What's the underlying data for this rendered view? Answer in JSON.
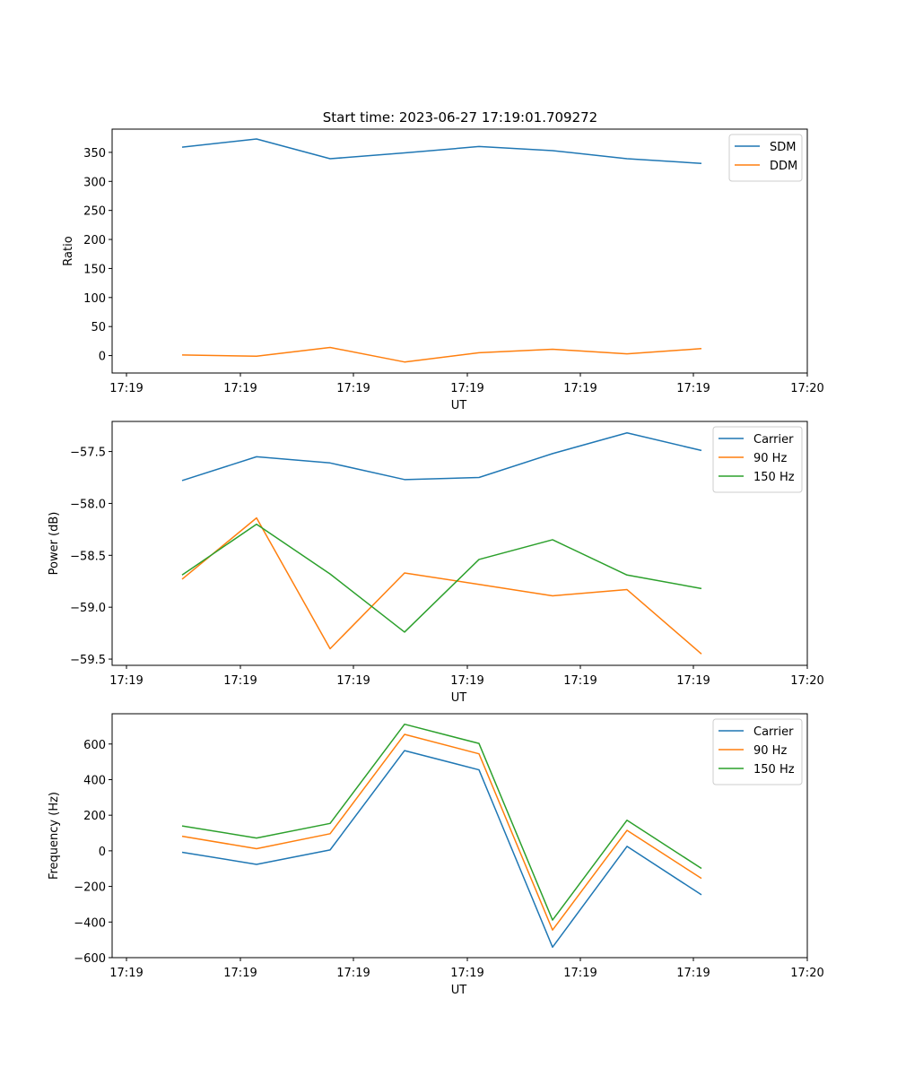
{
  "figure_title": "Start time: 2023-06-27 17:19:01.709272",
  "chart_data": [
    {
      "type": "line",
      "title": "Start time: 2023-06-27 17:19:01.709272",
      "xlabel": "UT",
      "ylabel": "Ratio",
      "x_tick_labels": [
        "17:19",
        "17:19",
        "17:19",
        "17:19",
        "17:19",
        "17:19",
        "17:20"
      ],
      "y_ticks": [
        0,
        50,
        100,
        150,
        200,
        250,
        300,
        350
      ],
      "ylim": [
        -30,
        390
      ],
      "legend_position": "top-right",
      "grid": false,
      "series": [
        {
          "name": "SDM",
          "color": "#1f77b4",
          "values": [
            359,
            373,
            339,
            349,
            360,
            353,
            339,
            331
          ]
        },
        {
          "name": "DDM",
          "color": "#ff7f0e",
          "values": [
            1,
            -1,
            14,
            -11,
            5,
            11,
            3,
            12
          ]
        }
      ]
    },
    {
      "type": "line",
      "title": "",
      "xlabel": "UT",
      "ylabel": "Power (dB)",
      "x_tick_labels": [
        "17:19",
        "17:19",
        "17:19",
        "17:19",
        "17:19",
        "17:19",
        "17:20"
      ],
      "y_ticks": [
        -59.5,
        -59.0,
        -58.5,
        -58.0,
        -57.5
      ],
      "y_tick_labels": [
        "−59.5",
        "−59.0",
        "−58.5",
        "−58.0",
        "−57.5"
      ],
      "ylim": [
        -59.56,
        -57.21
      ],
      "legend_position": "top-right",
      "grid": false,
      "series": [
        {
          "name": "Carrier",
          "color": "#1f77b4",
          "values": [
            -57.78,
            -57.55,
            -57.61,
            -57.77,
            -57.75,
            -57.52,
            -57.32,
            -57.49
          ]
        },
        {
          "name": "90 Hz",
          "color": "#ff7f0e",
          "values": [
            -58.73,
            -58.14,
            -59.4,
            -58.67,
            -58.78,
            -58.89,
            -58.83,
            -59.45
          ]
        },
        {
          "name": "150 Hz",
          "color": "#2ca02c",
          "values": [
            -58.69,
            -58.2,
            -58.68,
            -59.24,
            -58.54,
            -58.35,
            -58.69,
            -58.82
          ]
        }
      ]
    },
    {
      "type": "line",
      "title": "",
      "xlabel": "UT",
      "ylabel": "Frequency (Hz)",
      "x_tick_labels": [
        "17:19",
        "17:19",
        "17:19",
        "17:19",
        "17:19",
        "17:19",
        "17:20"
      ],
      "y_ticks": [
        -600,
        -400,
        -200,
        0,
        200,
        400,
        600
      ],
      "y_tick_labels": [
        "−600",
        "−400",
        "−200",
        "0",
        "200",
        "400",
        "600"
      ],
      "ylim": [
        -600,
        770
      ],
      "legend_position": "top-right",
      "grid": false,
      "series": [
        {
          "name": "Carrier",
          "color": "#1f77b4",
          "values": [
            -8,
            -76,
            5,
            563,
            455,
            -541,
            25,
            -247
          ]
        },
        {
          "name": "90 Hz",
          "color": "#ff7f0e",
          "values": [
            82,
            12,
            96,
            654,
            545,
            -445,
            115,
            -155
          ]
        },
        {
          "name": "150 Hz",
          "color": "#2ca02c",
          "values": [
            140,
            72,
            154,
            711,
            603,
            -389,
            172,
            -99
          ]
        }
      ]
    }
  ]
}
